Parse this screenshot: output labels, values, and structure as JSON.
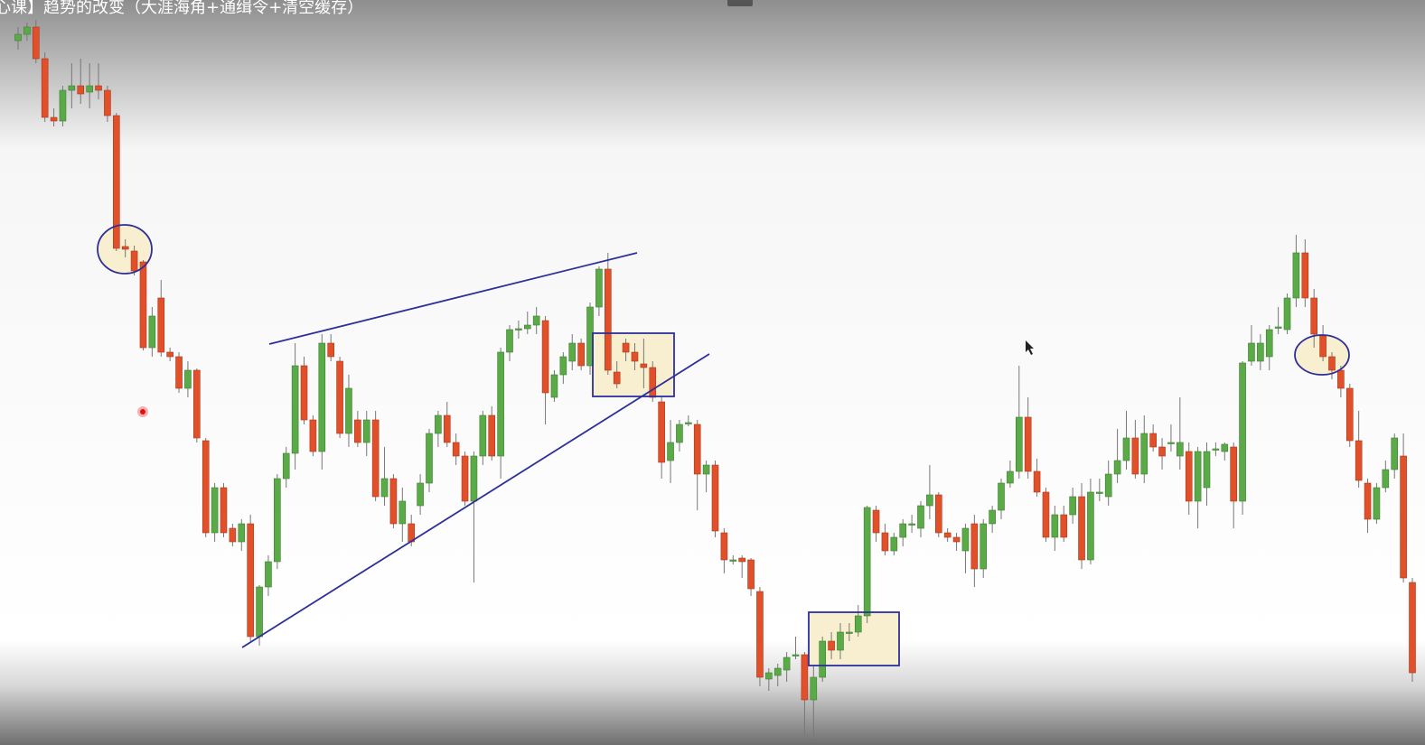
{
  "chart_data": {
    "type": "candlestick",
    "title": "心课】趋势的改变（大涯海角+通缉令+清空缓存）",
    "up_color": "#5aab48",
    "down_color": "#e2502a",
    "ylim": [
      175,
      1000
    ],
    "ohlc": [
      [
        955,
        970,
        945,
        962
      ],
      [
        962,
        975,
        955,
        970
      ],
      [
        970,
        978,
        930,
        935
      ],
      [
        935,
        942,
        865,
        870
      ],
      [
        870,
        880,
        860,
        866
      ],
      [
        866,
        905,
        860,
        900
      ],
      [
        900,
        930,
        880,
        905
      ],
      [
        905,
        935,
        885,
        896
      ],
      [
        898,
        930,
        880,
        905
      ],
      [
        905,
        930,
        890,
        900
      ],
      [
        900,
        905,
        865,
        872
      ],
      [
        872,
        875,
        722,
        725
      ],
      [
        727,
        735,
        715,
        724
      ],
      [
        722,
        728,
        695,
        700
      ],
      [
        710,
        712,
        612,
        615
      ],
      [
        615,
        660,
        605,
        650
      ],
      [
        670,
        690,
        605,
        610
      ],
      [
        610,
        615,
        600,
        605
      ],
      [
        605,
        610,
        565,
        570
      ],
      [
        570,
        600,
        560,
        590
      ],
      [
        590,
        592,
        510,
        515
      ],
      [
        512,
        515,
        405,
        410
      ],
      [
        410,
        465,
        400,
        460
      ],
      [
        460,
        465,
        405,
        410
      ],
      [
        415,
        420,
        395,
        400
      ],
      [
        400,
        425,
        390,
        420
      ],
      [
        420,
        430,
        290,
        295
      ],
      [
        295,
        352,
        285,
        350
      ],
      [
        350,
        385,
        340,
        378
      ],
      [
        378,
        475,
        370,
        470
      ],
      [
        470,
        505,
        460,
        498
      ],
      [
        498,
        620,
        480,
        595
      ],
      [
        595,
        605,
        530,
        535
      ],
      [
        535,
        540,
        495,
        500
      ],
      [
        500,
        630,
        480,
        620
      ],
      [
        620,
        630,
        600,
        605
      ],
      [
        600,
        605,
        515,
        520
      ],
      [
        520,
        585,
        505,
        570
      ],
      [
        535,
        545,
        505,
        510
      ],
      [
        510,
        545,
        495,
        535
      ],
      [
        535,
        545,
        445,
        450
      ],
      [
        450,
        505,
        440,
        470
      ],
      [
        470,
        475,
        415,
        420
      ],
      [
        420,
        460,
        400,
        445
      ],
      [
        420,
        430,
        395,
        400
      ],
      [
        440,
        475,
        430,
        465
      ],
      [
        465,
        525,
        455,
        520
      ],
      [
        520,
        545,
        505,
        540
      ],
      [
        540,
        555,
        505,
        510
      ],
      [
        510,
        520,
        485,
        495
      ],
      [
        495,
        500,
        440,
        445
      ],
      [
        445,
        500,
        355,
        495
      ],
      [
        495,
        545,
        485,
        540
      ],
      [
        540,
        550,
        490,
        495
      ],
      [
        495,
        615,
        470,
        610
      ],
      [
        610,
        640,
        600,
        635
      ],
      [
        635,
        645,
        625,
        636
      ],
      [
        636,
        655,
        630,
        640
      ],
      [
        640,
        660,
        630,
        650
      ],
      [
        645,
        650,
        530,
        565
      ],
      [
        560,
        590,
        555,
        585
      ],
      [
        585,
        610,
        575,
        605
      ],
      [
        600,
        630,
        590,
        620
      ],
      [
        620,
        625,
        590,
        595
      ],
      [
        595,
        665,
        585,
        660
      ],
      [
        660,
        705,
        650,
        702
      ],
      [
        702,
        720,
        585,
        590
      ],
      [
        588,
        600,
        570,
        575
      ],
      [
        620,
        625,
        600,
        610
      ],
      [
        610,
        620,
        590,
        600
      ],
      [
        597,
        625,
        570,
        593
      ],
      [
        593,
        600,
        555,
        560
      ],
      [
        555,
        560,
        470,
        488
      ],
      [
        490,
        535,
        465,
        510
      ],
      [
        510,
        535,
        500,
        530
      ],
      [
        532,
        540,
        528,
        532
      ],
      [
        530,
        535,
        435,
        475
      ],
      [
        475,
        490,
        455,
        485
      ],
      [
        485,
        490,
        405,
        412
      ],
      [
        410,
        415,
        365,
        380
      ],
      [
        380,
        385,
        375,
        380
      ],
      [
        382,
        385,
        360,
        378
      ],
      [
        380,
        382,
        340,
        348
      ],
      [
        345,
        350,
        240,
        250
      ],
      [
        248,
        260,
        235,
        255
      ],
      [
        252,
        265,
        240,
        260
      ],
      [
        258,
        278,
        245,
        272
      ],
      [
        275,
        295,
        270,
        275
      ],
      [
        275,
        278,
        185,
        225
      ],
      [
        225,
        262,
        178,
        250
      ],
      [
        250,
        295,
        245,
        290
      ],
      [
        290,
        300,
        270,
        280
      ],
      [
        280,
        310,
        270,
        300
      ],
      [
        300,
        310,
        290,
        300
      ],
      [
        300,
        330,
        295,
        318
      ],
      [
        318,
        440,
        310,
        438
      ],
      [
        435,
        440,
        400,
        410
      ],
      [
        410,
        420,
        385,
        390
      ],
      [
        390,
        410,
        385,
        405
      ],
      [
        405,
        425,
        395,
        420
      ],
      [
        420,
        430,
        410,
        420
      ],
      [
        415,
        445,
        405,
        440
      ],
      [
        440,
        485,
        425,
        452
      ],
      [
        452,
        455,
        405,
        410
      ],
      [
        410,
        415,
        400,
        405
      ],
      [
        405,
        410,
        390,
        400
      ],
      [
        390,
        420,
        365,
        415
      ],
      [
        420,
        430,
        350,
        370
      ],
      [
        370,
        425,
        360,
        420
      ],
      [
        420,
        440,
        410,
        435
      ],
      [
        435,
        470,
        425,
        465
      ],
      [
        465,
        490,
        460,
        478
      ],
      [
        478,
        595,
        470,
        538
      ],
      [
        538,
        560,
        470,
        478
      ],
      [
        478,
        492,
        450,
        455
      ],
      [
        455,
        460,
        400,
        405
      ],
      [
        405,
        440,
        390,
        430
      ],
      [
        430,
        440,
        400,
        405
      ],
      [
        430,
        460,
        420,
        450
      ],
      [
        450,
        465,
        370,
        380
      ],
      [
        380,
        470,
        375,
        455
      ],
      [
        455,
        470,
        445,
        455
      ],
      [
        450,
        490,
        440,
        475
      ],
      [
        475,
        525,
        465,
        490
      ],
      [
        490,
        545,
        480,
        515
      ],
      [
        515,
        535,
        470,
        475
      ],
      [
        475,
        540,
        465,
        520
      ],
      [
        520,
        530,
        500,
        505
      ],
      [
        505,
        515,
        480,
        495
      ],
      [
        510,
        530,
        500,
        510
      ],
      [
        495,
        560,
        480,
        510
      ],
      [
        500,
        510,
        430,
        445
      ],
      [
        445,
        505,
        415,
        500
      ],
      [
        460,
        510,
        440,
        500
      ],
      [
        503,
        510,
        495,
        503
      ],
      [
        500,
        510,
        490,
        508
      ],
      [
        505,
        510,
        415,
        445
      ],
      [
        445,
        600,
        430,
        598
      ],
      [
        600,
        640,
        595,
        620
      ],
      [
        600,
        630,
        590,
        620
      ],
      [
        605,
        640,
        590,
        635
      ],
      [
        638,
        660,
        630,
        638
      ],
      [
        635,
        675,
        630,
        670
      ],
      [
        670,
        740,
        660,
        720
      ],
      [
        720,
        735,
        660,
        670
      ],
      [
        670,
        680,
        615,
        630
      ],
      [
        628,
        640,
        600,
        605
      ],
      [
        605,
        610,
        580,
        590
      ],
      [
        590,
        595,
        560,
        570
      ],
      [
        570,
        575,
        505,
        512
      ],
      [
        512,
        545,
        460,
        468
      ],
      [
        465,
        470,
        410,
        425
      ],
      [
        425,
        465,
        420,
        460
      ],
      [
        460,
        490,
        455,
        480
      ],
      [
        480,
        520,
        470,
        515
      ],
      [
        495,
        520,
        355,
        360
      ],
      [
        355,
        360,
        245,
        255
      ]
    ]
  }
}
